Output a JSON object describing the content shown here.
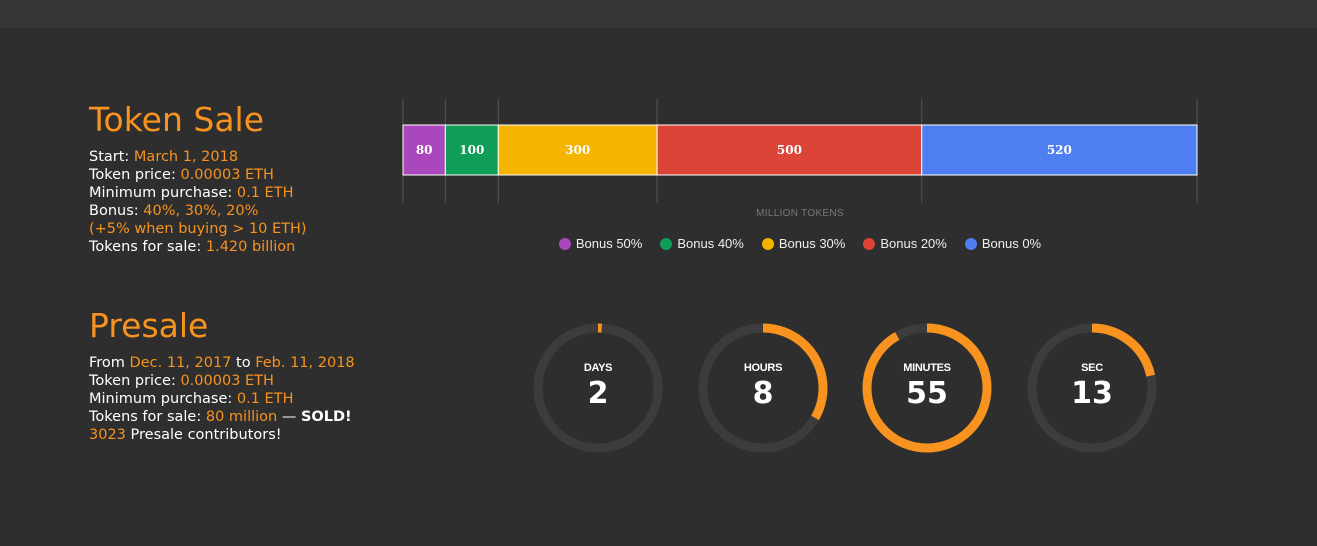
{
  "token_sale": {
    "title": "Token Sale",
    "start_label": "Start: ",
    "start_value": "March 1, 2018",
    "price_label": "Token price: ",
    "price_value": "0.00003 ETH",
    "min_label": "Minimum purchase: ",
    "min_value": "0.1 ETH",
    "bonus_label": "Bonus: ",
    "bonus_value": "40%, 30%, 20%",
    "bonus_note": "(+5% when buying > 10 ETH)",
    "forsale_label": "Tokens for sale: ",
    "forsale_value": "1.420 billion"
  },
  "presale": {
    "title": "Presale",
    "from_label": "From ",
    "from_value": "Dec. 11, 2017",
    "to_label": " to ",
    "to_value": "Feb. 11, 2018",
    "price_label": "Token price: ",
    "price_value": "0.00003 ETH",
    "min_label": "Minimum purchase: ",
    "min_value": "0.1 ETH",
    "forsale_label": "Tokens for sale: ",
    "forsale_value": "80 million",
    "sold_dash": " — ",
    "sold_text": "SOLD!",
    "contributors_count": "3023",
    "contributors_label": " Presale contributors!"
  },
  "chart_data": {
    "type": "bar",
    "orientation": "horizontal-stacked",
    "xlabel": "MILLION TOKENS",
    "xlim": [
      0,
      1500
    ],
    "legend_position": "bottom",
    "series": [
      {
        "name": "Bonus 50%",
        "value": 80,
        "color": "#ab47bc"
      },
      {
        "name": "Bonus 40%",
        "value": 100,
        "color": "#0f9d58"
      },
      {
        "name": "Bonus 30%",
        "value": 300,
        "color": "#f4b400"
      },
      {
        "name": "Bonus 20%",
        "value": 500,
        "color": "#db4437"
      },
      {
        "name": "Bonus 0%",
        "value": 520,
        "color": "#4f7ef3"
      }
    ]
  },
  "countdown": [
    {
      "label": "DAYS",
      "value": "2",
      "fraction": 0.01
    },
    {
      "label": "HOURS",
      "value": "8",
      "fraction": 0.333
    },
    {
      "label": "MINUTES",
      "value": "55",
      "fraction": 0.917
    },
    {
      "label": "SEC",
      "value": "13",
      "fraction": 0.217
    }
  ],
  "colors": {
    "accent": "#f7931e",
    "background": "#2e2e2e",
    "ring_track": "#3c3c3c"
  }
}
